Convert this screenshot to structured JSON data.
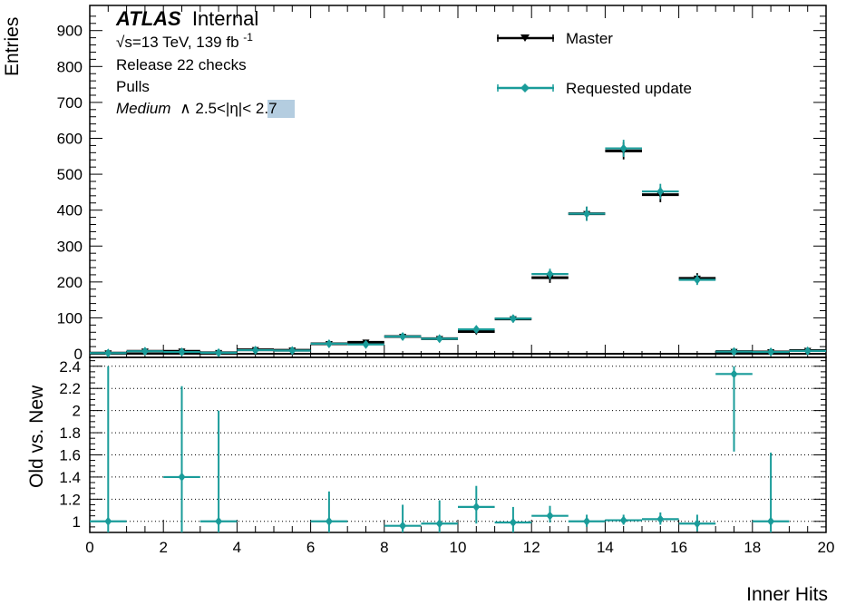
{
  "labels": {
    "atlas_bold": "ATLAS",
    "atlas_internal": "Internal",
    "energy_line": "√s=13 TeV, 139 fb",
    "energy_sup": "-1",
    "line3": "Release 22 checks",
    "line4": "Pulls",
    "medium_word": "Medium",
    "medium_rest": "∧ 2.5<|η|<",
    "medium_highlight": "2.7",
    "highlight_color": "#b4cde0"
  },
  "chart_data": [
    {
      "type": "line",
      "panel": "main",
      "xlabel": "Inner Hits",
      "ylabel": "Entries",
      "xlim": [
        0,
        20
      ],
      "ylim": [
        -10,
        970
      ],
      "y_ticks": [
        0,
        100,
        200,
        300,
        400,
        500,
        600,
        700,
        800,
        900
      ],
      "x_ticks": [
        0,
        2,
        4,
        6,
        8,
        10,
        12,
        14,
        16,
        18,
        20
      ],
      "legend_position": "top-right",
      "grid": false,
      "series": [
        {
          "name": "Master",
          "color": "#000000",
          "marker": "triangle-down",
          "x": [
            0.5,
            1.5,
            2.5,
            3.5,
            4.5,
            5.5,
            6.5,
            7.5,
            8.5,
            9.5,
            10.5,
            11.5,
            12.5,
            13.5,
            14.5,
            15.5,
            16.5,
            17.5,
            18.5,
            19.5
          ],
          "values": [
            2,
            7,
            7,
            3,
            11,
            10,
            28,
            32,
            48,
            42,
            62,
            97,
            212,
            390,
            565,
            443,
            210,
            6,
            5,
            9
          ],
          "errors": [
            1.4,
            2.6,
            2.6,
            1.7,
            3.3,
            3.2,
            5.3,
            5.7,
            6.9,
            6.5,
            7.9,
            9.8,
            14.6,
            19.7,
            23.8,
            21.0,
            14.5,
            2.4,
            2.2,
            3.0
          ]
        },
        {
          "name": "Requested update",
          "color": "#1a9c9a",
          "marker": "diamond",
          "x": [
            0.5,
            1.5,
            2.5,
            3.5,
            4.5,
            5.5,
            6.5,
            7.5,
            8.5,
            9.5,
            10.5,
            11.5,
            12.5,
            13.5,
            14.5,
            15.5,
            16.5,
            17.5,
            18.5,
            19.5
          ],
          "values": [
            2,
            7,
            5,
            3,
            10,
            9,
            28,
            26,
            48,
            42,
            68,
            98,
            222,
            390,
            572,
            452,
            206,
            6,
            5,
            8
          ],
          "errors": [
            1.4,
            2.6,
            2.2,
            1.7,
            3.2,
            3.0,
            5.3,
            5.1,
            6.9,
            6.5,
            8.2,
            9.9,
            14.9,
            19.7,
            23.9,
            21.3,
            14.4,
            2.4,
            2.2,
            2.8
          ]
        }
      ]
    },
    {
      "type": "scatter",
      "panel": "ratio",
      "xlabel": "Inner Hits",
      "ylabel": "Old vs. New",
      "xlim": [
        0,
        20
      ],
      "ylim": [
        0.9,
        2.48
      ],
      "y_ticks": [
        1,
        1.2,
        1.4,
        1.6,
        1.8,
        2,
        2.2,
        2.4
      ],
      "y_tick_labels": [
        "1",
        "1.2",
        "1.4",
        "1.6",
        "1.8",
        "2",
        "2.2",
        "2.4"
      ],
      "x_ticks": [
        0,
        2,
        4,
        6,
        8,
        10,
        12,
        14,
        16,
        18,
        20
      ],
      "x_tick_labels": [
        "0",
        "2",
        "4",
        "6",
        "8",
        "10",
        "12",
        "14",
        "16",
        "18",
        "20"
      ],
      "grid": "dotted horizontal",
      "series": [
        {
          "name": "",
          "color": "#1a9c9a",
          "x": [
            0.5,
            2.5,
            3.5,
            6.5,
            8.5,
            9.5,
            10.5,
            11.5,
            12.5,
            13.5,
            14.5,
            15.5,
            16.5,
            17.5,
            18.5
          ],
          "values": [
            1.0,
            1.4,
            1.0,
            1.0,
            0.96,
            0.98,
            1.13,
            0.99,
            1.05,
            1.0,
            1.01,
            1.02,
            0.98,
            2.33,
            1.0
          ],
          "err_low": [
            0.15,
            0.55,
            0.15,
            0.2,
            0.1,
            0.1,
            0.15,
            0.1,
            0.06,
            0.05,
            0.04,
            0.05,
            0.07,
            0.7,
            0.15
          ],
          "err_high": [
            1.4,
            0.82,
            1.0,
            0.27,
            0.19,
            0.21,
            0.19,
            0.14,
            0.09,
            0.06,
            0.05,
            0.06,
            0.08,
            0.1,
            0.62
          ]
        }
      ]
    }
  ]
}
